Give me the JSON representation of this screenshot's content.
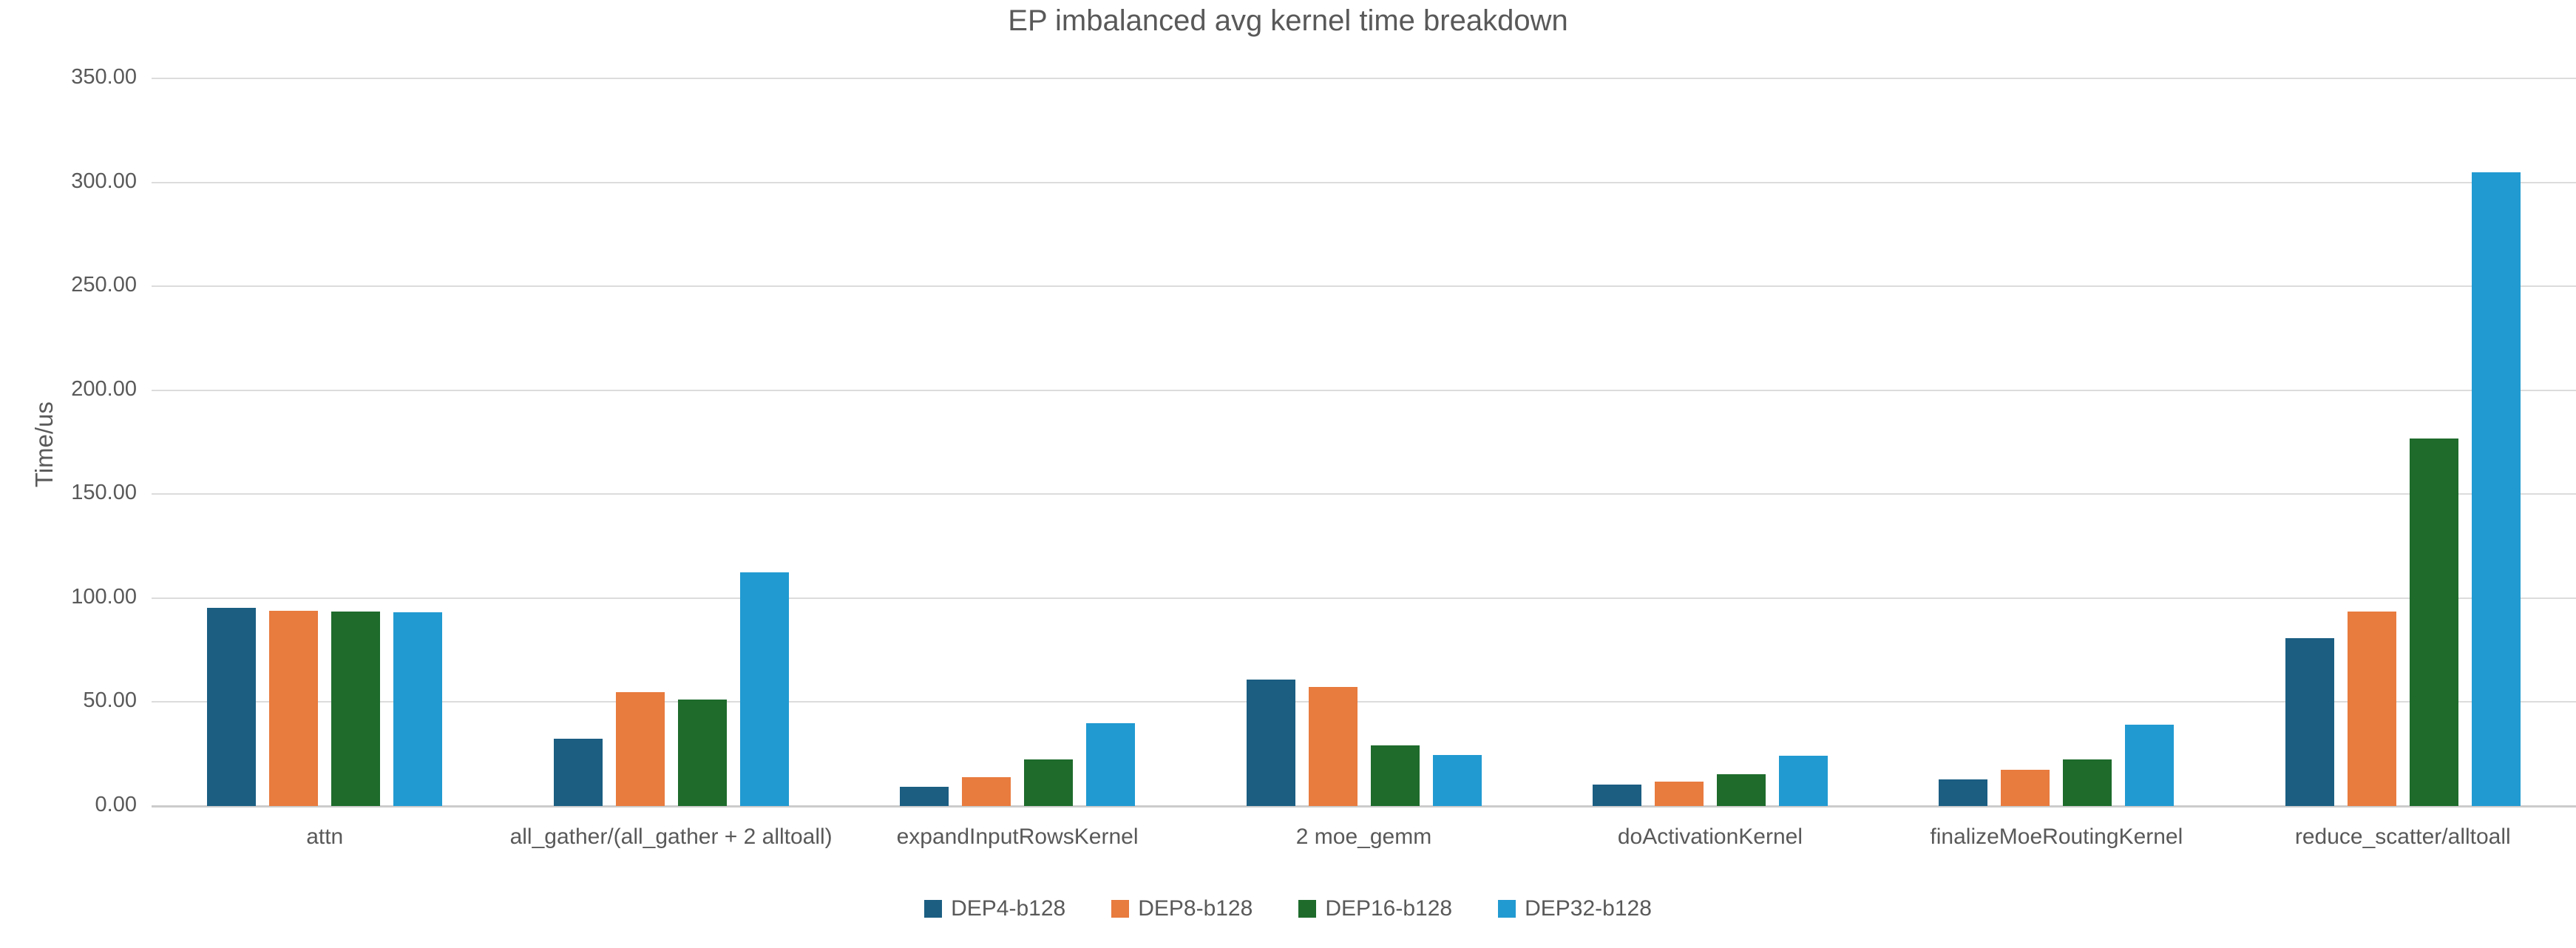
{
  "chart_data": {
    "type": "bar",
    "title": "EP imbalanced avg kernel time breakdown",
    "xlabel": "",
    "ylabel": "Time/us",
    "ylim": [
      0,
      350
    ],
    "ytick_step": 50,
    "yticks": [
      {
        "value": 350,
        "label": "350.00"
      },
      {
        "value": 300,
        "label": "300.00"
      },
      {
        "value": 250,
        "label": "250.00"
      },
      {
        "value": 200,
        "label": "200.00"
      },
      {
        "value": 150,
        "label": "150.00"
      },
      {
        "value": 100,
        "label": "100.00"
      },
      {
        "value": 50,
        "label": "50.00"
      },
      {
        "value": 0,
        "label": "0.00"
      }
    ],
    "grid": true,
    "legend_position": "bottom",
    "categories": [
      "attn",
      "all_gather/(all_gather + 2 alltoall)",
      "expandInputRowsKernel",
      "2 moe_gemm",
      "doActivationKernel",
      "finalizeMoeRoutingKernel",
      "reduce_scatter/alltoall"
    ],
    "series": [
      {
        "name": "DEP4-b128",
        "color": "#1b5e82",
        "values": [
          95.4,
          32.4,
          9.2,
          61.0,
          10.2,
          12.7,
          80.8
        ]
      },
      {
        "name": "DEP8-b128",
        "color": "#e87b3e",
        "values": [
          94.0,
          54.6,
          13.9,
          57.4,
          11.6,
          17.6,
          93.5
        ]
      },
      {
        "name": "DEP16-b128",
        "color": "#1e6b2c",
        "values": [
          93.6,
          51.1,
          22.4,
          29.0,
          15.3,
          22.4,
          176.8
        ]
      },
      {
        "name": "DEP32-b128",
        "color": "#219ad1",
        "values": [
          93.3,
          112.5,
          39.9,
          24.7,
          24.1,
          39.1,
          304.7
        ]
      }
    ],
    "colors": {
      "background": "#ffffff",
      "gridline": "#dcdcdc",
      "zero_axis": "#cccccc",
      "text": "#595959"
    }
  }
}
